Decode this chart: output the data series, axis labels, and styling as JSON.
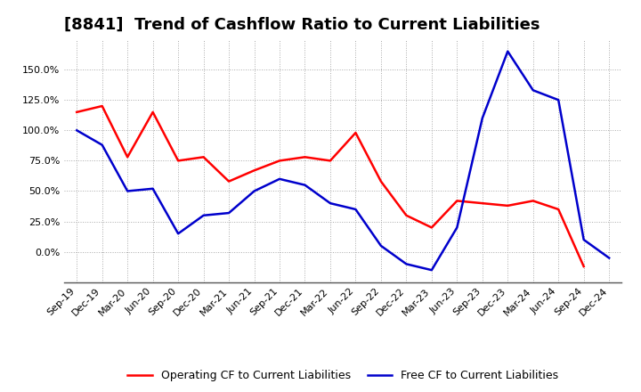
{
  "title": "[8841]  Trend of Cashflow Ratio to Current Liabilities",
  "x_labels": [
    "Sep-19",
    "Dec-19",
    "Mar-20",
    "Jun-20",
    "Sep-20",
    "Dec-20",
    "Mar-21",
    "Jun-21",
    "Sep-21",
    "Dec-21",
    "Mar-22",
    "Jun-22",
    "Sep-22",
    "Dec-22",
    "Mar-23",
    "Jun-23",
    "Sep-23",
    "Dec-23",
    "Mar-24",
    "Jun-24",
    "Sep-24",
    "Dec-24"
  ],
  "operating_cf": [
    1.15,
    1.2,
    0.78,
    1.15,
    0.75,
    0.78,
    0.58,
    0.67,
    0.75,
    0.78,
    0.75,
    0.98,
    0.58,
    0.3,
    0.2,
    0.42,
    0.4,
    0.38,
    0.42,
    0.35,
    -0.12,
    null
  ],
  "free_cf": [
    1.0,
    0.88,
    0.5,
    0.52,
    0.15,
    0.3,
    0.32,
    0.5,
    0.6,
    0.55,
    0.4,
    0.35,
    0.05,
    -0.1,
    -0.15,
    0.2,
    1.1,
    1.65,
    1.33,
    1.25,
    0.1,
    -0.05
  ],
  "operating_color": "#ff0000",
  "free_color": "#0000cc",
  "ylim": [
    -0.25,
    1.75
  ],
  "yticks": [
    0.0,
    0.25,
    0.5,
    0.75,
    1.0,
    1.25,
    1.5
  ],
  "grid_color": "#aaaaaa",
  "bg_color": "#ffffff",
  "legend_op": "Operating CF to Current Liabilities",
  "legend_free": "Free CF to Current Liabilities",
  "title_fontsize": 13,
  "tick_fontsize": 8,
  "legend_fontsize": 9,
  "linewidth": 1.8
}
